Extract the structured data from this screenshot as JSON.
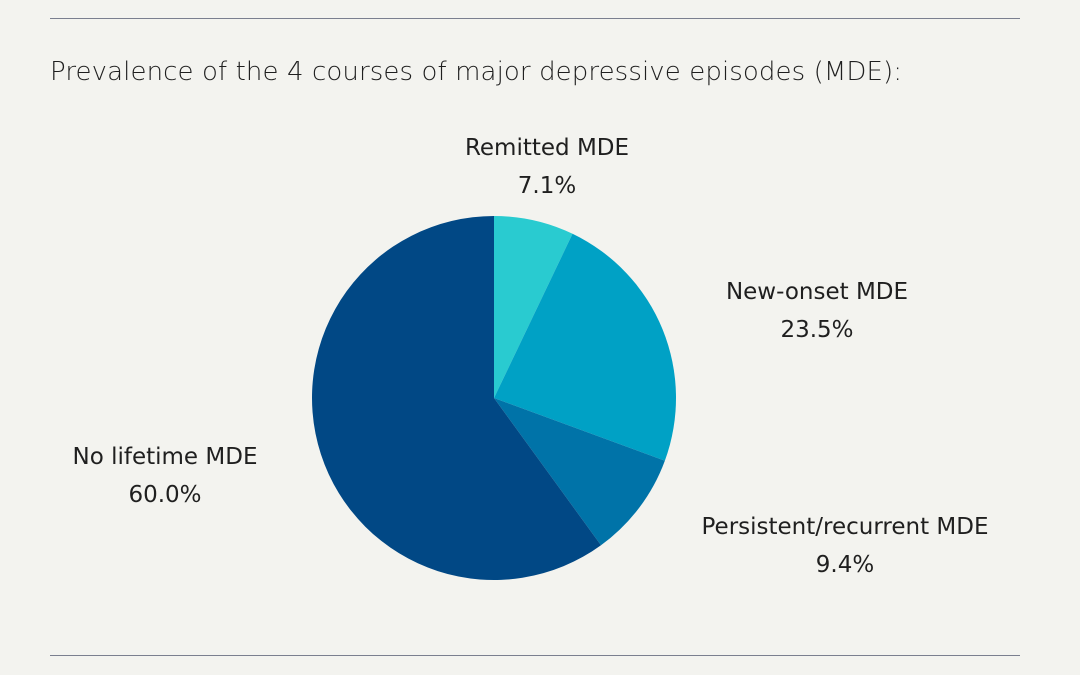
{
  "title": "Prevalence of the 4 courses of major depressive episodes (MDE):",
  "chart_data": {
    "type": "pie",
    "title": "Prevalence of the 4 courses of major depressive episodes (MDE):",
    "slices": [
      {
        "label": "Remitted MDE",
        "value": 7.1,
        "value_label": "7.1%",
        "color": "#29cbd0"
      },
      {
        "label": "New-onset MDE",
        "value": 23.5,
        "value_label": "23.5%",
        "color": "#00a1c5"
      },
      {
        "label": "Persistent/recurrent MDE",
        "value": 9.4,
        "value_label": "9.4%",
        "color": "#0073a8"
      },
      {
        "label": "No lifetime MDE",
        "value": 60.0,
        "value_label": "60.0%",
        "color": "#014885"
      }
    ],
    "start": "12 o'clock",
    "direction": "clockwise",
    "legend": "none"
  }
}
